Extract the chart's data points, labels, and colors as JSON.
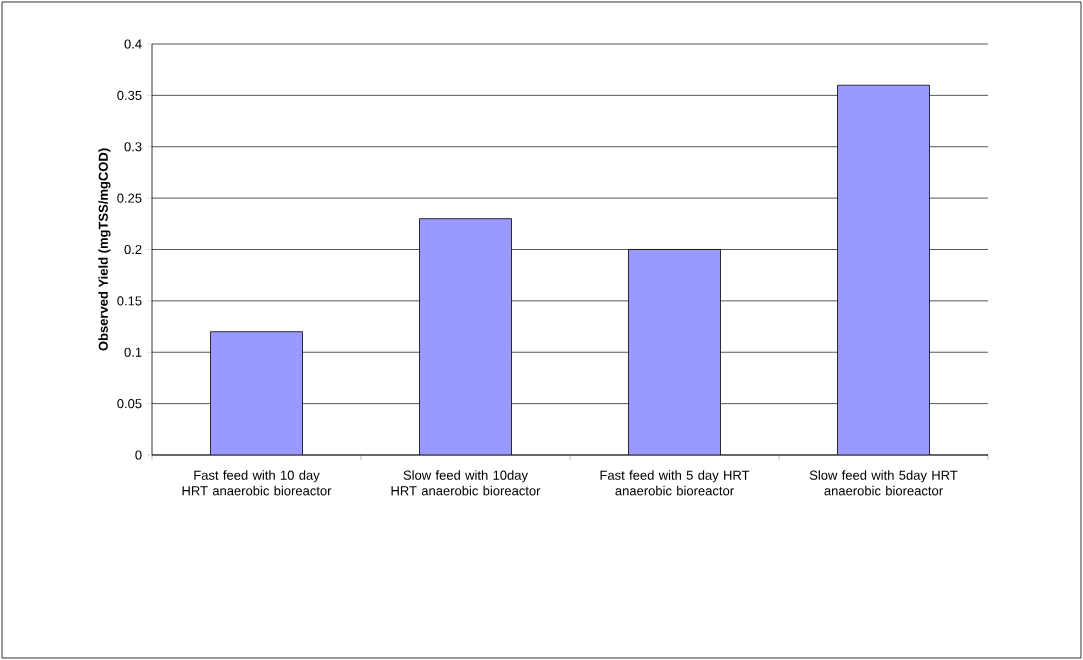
{
  "chart_data": {
    "type": "bar",
    "ylabel": "Observed Yield (mgTSS/mgCOD)",
    "categories": [
      "Fast feed with 10 day HRT anaerobic bioreactor",
      "Slow feed with 10day HRT anaerobic bioreactor",
      "Fast feed with 5 day HRT anaerobic bioreactor",
      "Slow feed with 5day HRT anaerobic bioreactor"
    ],
    "values": [
      0.12,
      0.23,
      0.2,
      0.36
    ],
    "color": "#9999ff",
    "ylim": [
      0,
      0.4
    ],
    "yticks": [
      0,
      0.05,
      0.1,
      0.15,
      0.2,
      0.25,
      0.3,
      0.35,
      0.4
    ],
    "grid": "y"
  }
}
